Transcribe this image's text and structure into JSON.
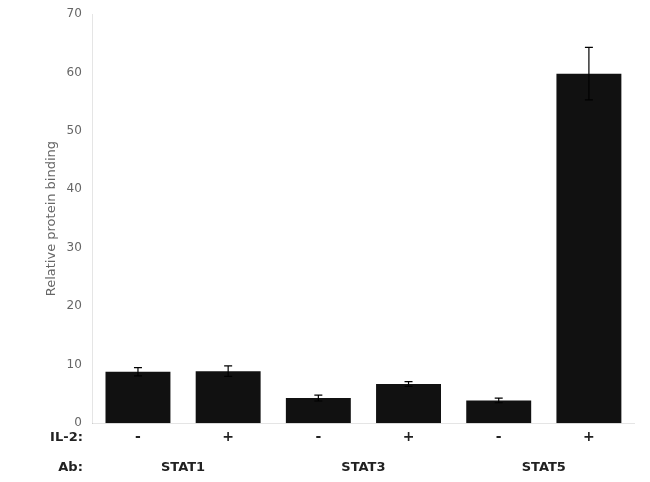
{
  "chart_data": {
    "type": "bar",
    "ylabel": "Relative protein binding",
    "categories": [
      "-",
      "+",
      "-",
      "+",
      "-",
      "+"
    ],
    "categories_label": "IL-2:",
    "groups": [
      "STAT1",
      "STAT3",
      "STAT5"
    ],
    "groups_label": "Ab:",
    "values": [
      8.8,
      8.9,
      4.3,
      6.7,
      3.9,
      59.8
    ],
    "errors": [
      0.7,
      0.9,
      0.5,
      0.4,
      0.4,
      4.5
    ],
    "color": "#111111",
    "ylim": [
      0,
      70
    ],
    "yticks": [
      0,
      10,
      20,
      30,
      40,
      50,
      60,
      70
    ],
    "grid": false
  }
}
